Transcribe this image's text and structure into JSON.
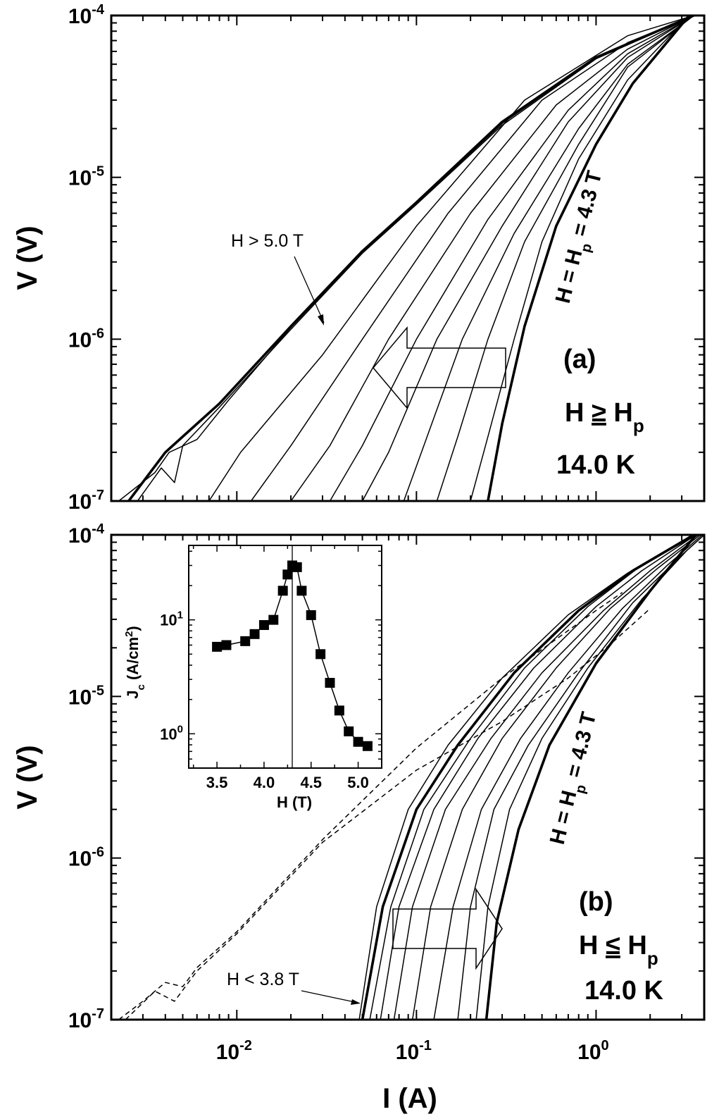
{
  "chart_data": [
    {
      "panel": "a",
      "type": "line",
      "xscale": "log",
      "yscale": "log",
      "xlim": [
        0.002,
        4.0
      ],
      "ylim": [
        1e-07,
        0.0001
      ],
      "xlabel": "",
      "ylabel": "V (V)",
      "x_ticks": [
        {
          "value": 0.01,
          "base": "10",
          "exp": "-2"
        },
        {
          "value": 0.1,
          "base": "10",
          "exp": "-1"
        },
        {
          "value": 1,
          "base": "10",
          "exp": "0"
        }
      ],
      "y_ticks": [
        {
          "value": 1e-07,
          "base": "10",
          "exp": "-7"
        },
        {
          "value": 1e-06,
          "base": "10",
          "exp": "-6"
        },
        {
          "value": 1e-05,
          "base": "10",
          "exp": "-5"
        },
        {
          "value": 0.0001,
          "base": "10",
          "exp": "-4"
        }
      ],
      "label": "(a)",
      "condition": {
        "main": "H ",
        "rel": "≥",
        "sym": " H",
        "sub": "p"
      },
      "temperature": "14.0 K",
      "curve_label": {
        "pre": "H = H",
        "sub": "p",
        "post": " = 4.3 T"
      },
      "annotation": "H > 5.0 T",
      "arrow_direction": "left",
      "series": [
        {
          "style": "bold",
          "points": [
            [
              0.25,
              1e-07
            ],
            [
              0.3,
              3e-07
            ],
            [
              0.4,
              1.2e-06
            ],
            [
              0.6,
              5e-06
            ],
            [
              1.0,
              1.6e-05
            ],
            [
              1.6,
              3.8e-05
            ],
            [
              3.3,
              0.0001
            ]
          ]
        },
        {
          "style": "thin",
          "points": [
            [
              0.2,
              1e-07
            ],
            [
              0.25,
              2.5e-07
            ],
            [
              0.35,
              1e-06
            ],
            [
              0.5,
              4e-06
            ],
            [
              0.8,
              1.3e-05
            ],
            [
              1.5,
              4e-05
            ],
            [
              3.3,
              0.0001
            ]
          ]
        },
        {
          "style": "thin",
          "points": [
            [
              0.13,
              1e-07
            ],
            [
              0.17,
              2.5e-07
            ],
            [
              0.25,
              1e-06
            ],
            [
              0.4,
              4e-06
            ],
            [
              0.8,
              1.6e-05
            ],
            [
              1.5,
              4.8e-05
            ],
            [
              3.5,
              0.0001
            ]
          ]
        },
        {
          "style": "thin",
          "points": [
            [
              0.085,
              1e-07
            ],
            [
              0.11,
              2.2e-07
            ],
            [
              0.18,
              1e-06
            ],
            [
              0.35,
              4.5e-06
            ],
            [
              0.8,
              2e-05
            ],
            [
              1.5,
              5e-05
            ],
            [
              3.5,
              0.0001
            ]
          ]
        },
        {
          "style": "thin",
          "points": [
            [
              0.05,
              1e-07
            ],
            [
              0.07,
              2e-07
            ],
            [
              0.13,
              1e-06
            ],
            [
              0.3,
              5e-06
            ],
            [
              0.7,
              2.2e-05
            ],
            [
              1.5,
              5.5e-05
            ],
            [
              3.5,
              0.0001
            ]
          ]
        },
        {
          "style": "thin",
          "points": [
            [
              0.033,
              1e-07
            ],
            [
              0.05,
              2.2e-07
            ],
            [
              0.1,
              1e-06
            ],
            [
              0.25,
              5.5e-06
            ],
            [
              0.7,
              2.6e-05
            ],
            [
              1.5,
              5.8e-05
            ],
            [
              3.5,
              0.0001
            ]
          ]
        },
        {
          "style": "thin",
          "points": [
            [
              0.02,
              1e-07
            ],
            [
              0.033,
              2.2e-07
            ],
            [
              0.07,
              1e-06
            ],
            [
              0.2,
              6e-06
            ],
            [
              0.6,
              2.8e-05
            ],
            [
              1.5,
              6.2e-05
            ],
            [
              3.5,
              0.0001
            ]
          ]
        },
        {
          "style": "thin",
          "points": [
            [
              0.012,
              1e-07
            ],
            [
              0.02,
              2.2e-07
            ],
            [
              0.05,
              1e-06
            ],
            [
              0.15,
              6e-06
            ],
            [
              0.5,
              3e-05
            ],
            [
              1.5,
              6.8e-05
            ],
            [
              3.5,
              0.0001
            ]
          ]
        },
        {
          "style": "thin",
          "points": [
            [
              0.007,
              1e-07
            ],
            [
              0.0105,
              2e-07
            ],
            [
              0.03,
              8e-07
            ],
            [
              0.1,
              5e-06
            ],
            [
              0.4,
              3e-05
            ],
            [
              1.5,
              7.5e-05
            ],
            [
              3.5,
              0.0001
            ]
          ]
        },
        {
          "style": "bold",
          "points": [
            [
              0.0025,
              1e-07
            ],
            [
              0.004,
              2e-07
            ],
            [
              0.008,
              4e-07
            ],
            [
              0.02,
              1.2e-06
            ],
            [
              0.05,
              3.5e-06
            ],
            [
              0.1,
              7e-06
            ],
            [
              0.3,
              2.2e-05
            ],
            [
              1.0,
              5.5e-05
            ],
            [
              3.5,
              0.0001
            ]
          ]
        },
        {
          "style": "thin",
          "points": [
            [
              0.0028,
              1e-07
            ],
            [
              0.0038,
              1.6e-07
            ],
            [
              0.0045,
              1.3e-07
            ],
            [
              0.005,
              2.2e-07
            ],
            [
              0.008,
              3.8e-07
            ],
            [
              0.02,
              1.15e-06
            ],
            [
              0.05,
              3.4e-06
            ],
            [
              0.1,
              6.8e-06
            ],
            [
              0.3,
              2.1e-05
            ],
            [
              1.0,
              5.4e-05
            ],
            [
              3.5,
              0.0001
            ]
          ]
        },
        {
          "style": "thin",
          "points": [
            [
              0.0022,
              1e-07
            ],
            [
              0.0035,
              1.5e-07
            ],
            [
              0.0042,
              2e-07
            ],
            [
              0.006,
              2.4e-07
            ],
            [
              0.009,
              4.2e-07
            ],
            [
              0.02,
              1.18e-06
            ],
            [
              0.05,
              3.45e-06
            ],
            [
              0.1,
              6.9e-06
            ],
            [
              0.3,
              2.15e-05
            ],
            [
              1.0,
              5.45e-05
            ],
            [
              3.5,
              0.0001
            ]
          ]
        }
      ]
    },
    {
      "panel": "b",
      "type": "line",
      "xscale": "log",
      "yscale": "log",
      "xlim": [
        0.002,
        4.0
      ],
      "ylim": [
        1e-07,
        0.0001
      ],
      "xlabel": "I (A)",
      "ylabel": "V (V)",
      "x_ticks": [
        {
          "value": 0.01,
          "base": "10",
          "exp": "-2"
        },
        {
          "value": 0.1,
          "base": "10",
          "exp": "-1"
        },
        {
          "value": 1,
          "base": "10",
          "exp": "0"
        }
      ],
      "y_ticks": [
        {
          "value": 1e-07,
          "base": "10",
          "exp": "-7"
        },
        {
          "value": 1e-06,
          "base": "10",
          "exp": "-6"
        },
        {
          "value": 1e-05,
          "base": "10",
          "exp": "-5"
        },
        {
          "value": 0.0001,
          "base": "10",
          "exp": "-4"
        }
      ],
      "label": "(b)",
      "condition": {
        "main": "H ",
        "rel": "≤",
        "sym": " H",
        "sub": "p"
      },
      "temperature": "14.0 K",
      "curve_label": {
        "pre": "H = H",
        "sub": "p",
        "post": " = 4.3 T"
      },
      "annotation": "H < 3.8 T",
      "arrow_direction": "right",
      "series": [
        {
          "style": "dashed",
          "points": [
            [
              0.0022,
              1e-07
            ],
            [
              0.003,
              1.3e-07
            ],
            [
              0.004,
              1.7e-07
            ],
            [
              0.005,
              1.6e-07
            ],
            [
              0.006,
              2.1e-07
            ],
            [
              0.01,
              3.5e-07
            ],
            [
              0.03,
              1.3e-06
            ],
            [
              0.1,
              4.8e-06
            ],
            [
              0.3,
              1.3e-05
            ],
            [
              1.0,
              3.4e-05
            ],
            [
              1.4,
              4.4e-05
            ]
          ]
        },
        {
          "style": "dashed",
          "points": [
            [
              0.0024,
              1e-07
            ],
            [
              0.0035,
              1.5e-07
            ],
            [
              0.0045,
              1.3e-07
            ],
            [
              0.006,
              2e-07
            ],
            [
              0.01,
              3.4e-07
            ],
            [
              0.03,
              1.25e-06
            ],
            [
              0.1,
              3.5e-06
            ],
            [
              0.3,
              7e-06
            ],
            [
              0.7,
              1.3e-05
            ],
            [
              1.2,
              2.1e-05
            ],
            [
              2.0,
              3.5e-05
            ]
          ]
        },
        {
          "style": "thin",
          "points": [
            [
              0.048,
              1e-07
            ],
            [
              0.06,
              5e-07
            ],
            [
              0.09,
              2e-06
            ],
            [
              0.15,
              5e-06
            ],
            [
              0.3,
              1.3e-05
            ],
            [
              0.7,
              3.2e-05
            ],
            [
              1.5,
              5.8e-05
            ],
            [
              3.5,
              0.0001
            ]
          ]
        },
        {
          "style": "bold",
          "points": [
            [
              0.05,
              1e-07
            ],
            [
              0.065,
              5e-07
            ],
            [
              0.1,
              2e-06
            ],
            [
              0.17,
              5e-06
            ],
            [
              0.35,
              1.4e-05
            ],
            [
              0.8,
              3.4e-05
            ],
            [
              1.6,
              6e-05
            ],
            [
              3.5,
              0.0001
            ]
          ]
        },
        {
          "style": "thin",
          "points": [
            [
              0.055,
              1e-07
            ],
            [
              0.072,
              5e-07
            ],
            [
              0.11,
              2e-06
            ],
            [
              0.2,
              5.5e-06
            ],
            [
              0.4,
              1.5e-05
            ],
            [
              0.9,
              3.6e-05
            ],
            [
              1.7,
              6.2e-05
            ],
            [
              3.6,
              0.0001
            ]
          ]
        },
        {
          "style": "thin",
          "points": [
            [
              0.063,
              1e-07
            ],
            [
              0.08,
              5e-07
            ],
            [
              0.125,
              2e-06
            ],
            [
              0.22,
              5.5e-06
            ],
            [
              0.45,
              1.5e-05
            ],
            [
              1.0,
              3.6e-05
            ],
            [
              1.8,
              6e-05
            ],
            [
              3.6,
              0.0001
            ]
          ]
        },
        {
          "style": "thin",
          "points": [
            [
              0.075,
              1e-07
            ],
            [
              0.095,
              5e-07
            ],
            [
              0.145,
              2e-06
            ],
            [
              0.26,
              5.5e-06
            ],
            [
              0.5,
              1.4e-05
            ],
            [
              1.1,
              3.4e-05
            ],
            [
              2.0,
              6e-05
            ],
            [
              3.7,
              0.0001
            ]
          ]
        },
        {
          "style": "thin",
          "points": [
            [
              0.095,
              1e-07
            ],
            [
              0.12,
              5e-07
            ],
            [
              0.18,
              2e-06
            ],
            [
              0.3,
              5.5e-06
            ],
            [
              0.6,
              1.5e-05
            ],
            [
              1.2,
              3.5e-05
            ],
            [
              2.2,
              6.2e-05
            ],
            [
              3.8,
              0.0001
            ]
          ]
        },
        {
          "style": "thin",
          "points": [
            [
              0.125,
              1e-07
            ],
            [
              0.16,
              5e-07
            ],
            [
              0.23,
              2e-06
            ],
            [
              0.38,
              5.5e-06
            ],
            [
              0.7,
              1.4e-05
            ],
            [
              1.4,
              3.5e-05
            ],
            [
              2.5,
              6.5e-05
            ],
            [
              3.9,
              0.0001
            ]
          ]
        },
        {
          "style": "thin",
          "points": [
            [
              0.17,
              1e-07
            ],
            [
              0.2,
              5e-07
            ],
            [
              0.27,
              2e-06
            ],
            [
              0.42,
              5e-06
            ],
            [
              0.8,
              1.4e-05
            ],
            [
              1.6,
              3.8e-05
            ],
            [
              3.0,
              7.5e-05
            ],
            [
              4.0,
              0.0001
            ]
          ]
        },
        {
          "style": "thin",
          "points": [
            [
              0.215,
              1e-07
            ],
            [
              0.25,
              5e-07
            ],
            [
              0.33,
              2e-06
            ],
            [
              0.5,
              5.5e-06
            ],
            [
              0.9,
              1.5e-05
            ],
            [
              1.8,
              4e-05
            ],
            [
              3.2,
              8e-05
            ],
            [
              4.0,
              0.0001
            ]
          ]
        },
        {
          "style": "bold",
          "points": [
            [
              0.245,
              1e-07
            ],
            [
              0.28,
              4e-07
            ],
            [
              0.37,
              1.5e-06
            ],
            [
              0.55,
              5e-06
            ],
            [
              1.0,
              1.6e-05
            ],
            [
              2.0,
              4.5e-05
            ],
            [
              3.6,
              0.0001
            ]
          ]
        }
      ]
    },
    {
      "panel": "inset",
      "type": "scatter",
      "xscale": "linear",
      "yscale": "log",
      "xlim": [
        3.2,
        5.25
      ],
      "ylim": [
        0.5,
        45
      ],
      "xlabel": "H (T)",
      "ylabel": {
        "base": "J",
        "sub": "c",
        "mid": " (A/cm",
        "sup": "2",
        "end": ")"
      },
      "x_ticks": [
        {
          "value": 3.5,
          "label": "3.5"
        },
        {
          "value": 4.0,
          "label": "4.0"
        },
        {
          "value": 4.5,
          "label": "4.5"
        },
        {
          "value": 5.0,
          "label": "5.0"
        }
      ],
      "y_ticks": [
        {
          "value": 1,
          "base": "10",
          "exp": "0"
        },
        {
          "value": 10,
          "base": "10",
          "exp": "1"
        }
      ],
      "vline": 4.3,
      "x": [
        3.5,
        3.6,
        3.8,
        3.9,
        4.0,
        4.1,
        4.2,
        4.25,
        4.3,
        4.35,
        4.4,
        4.5,
        4.6,
        4.7,
        4.8,
        4.9,
        5.0,
        5.1
      ],
      "y": [
        5.8,
        6.0,
        6.5,
        7.5,
        9.0,
        10.0,
        18.0,
        25.0,
        30.0,
        29.0,
        18.0,
        11.0,
        5.0,
        2.8,
        1.6,
        1.05,
        0.85,
        0.78
      ]
    }
  ]
}
